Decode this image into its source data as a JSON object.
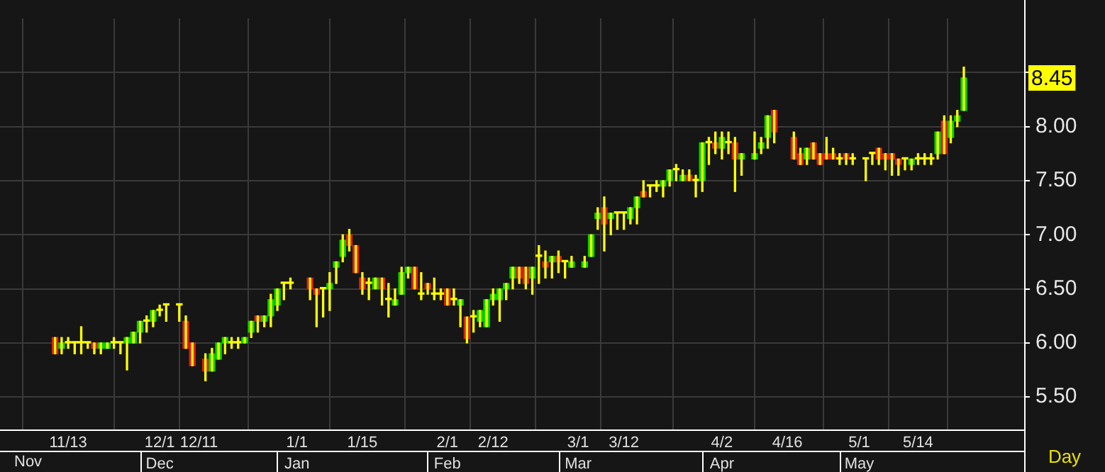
{
  "chart_data": {
    "type": "candlestick",
    "xlabel": "Day",
    "categories": [
      null,
      null,
      "11/13",
      null,
      null,
      null,
      null,
      null,
      null,
      null,
      null,
      null,
      null,
      null,
      null,
      null,
      "12/1\nDec",
      null,
      null,
      null,
      null,
      null,
      "12/11",
      null,
      null,
      null,
      null,
      null,
      null,
      null,
      null,
      null,
      null,
      null,
      null,
      null,
      null,
      "1/1\nJan",
      null,
      null,
      null,
      null,
      null,
      null,
      null,
      null,
      null,
      "1/15",
      null,
      null,
      null,
      null,
      null,
      null,
      null,
      null,
      null,
      null,
      null,
      null,
      "2/1\nFeb",
      null,
      null,
      null,
      null,
      null,
      null,
      "2/12",
      null,
      null,
      null,
      null,
      null,
      null,
      null,
      null,
      null,
      null,
      null,
      null,
      "3/1\nMar",
      null,
      null,
      null,
      null,
      null,
      null,
      "3/12",
      null,
      null,
      null,
      null,
      null,
      null,
      null,
      null,
      null,
      null,
      null,
      null,
      null,
      null,
      "4/2\nApr",
      null,
      null,
      null,
      null,
      null,
      null,
      null,
      null,
      null,
      "4/16",
      null,
      null,
      null,
      null,
      null,
      null,
      null,
      null,
      null,
      null,
      "5/1\nMay",
      null,
      null,
      null,
      null,
      null,
      null,
      null,
      null,
      "5/14",
      null,
      null,
      null,
      null,
      null,
      null,
      null
    ],
    "ohlc": [
      [
        6.05,
        6.05,
        5.9,
        5.9
      ],
      [
        5.95,
        6.05,
        5.9,
        6.0
      ],
      [
        6.0,
        6.05,
        5.95,
        6.0
      ],
      [
        6.0,
        6.0,
        5.9,
        6.0
      ],
      [
        6.0,
        6.15,
        5.9,
        6.0
      ],
      [
        6.0,
        6.0,
        5.95,
        6.0
      ],
      [
        6.0,
        6.0,
        5.9,
        5.95
      ],
      [
        5.95,
        6.0,
        5.9,
        6.0
      ],
      [
        5.95,
        6.0,
        5.95,
        6.0
      ],
      [
        6.0,
        6.05,
        5.95,
        6.0
      ],
      [
        6.0,
        6.0,
        5.9,
        6.0
      ],
      [
        6.0,
        6.05,
        5.75,
        6.05
      ],
      [
        6.0,
        6.1,
        6.0,
        6.1
      ],
      [
        6.1,
        6.2,
        6.0,
        6.2
      ],
      [
        6.2,
        6.25,
        6.1,
        6.2
      ],
      [
        6.2,
        6.3,
        6.15,
        6.3
      ],
      [
        6.3,
        6.35,
        6.25,
        6.3
      ],
      [
        6.35,
        6.35,
        6.2,
        6.35
      ],
      null,
      [
        6.35,
        6.35,
        6.2,
        6.35
      ],
      [
        6.2,
        6.25,
        5.95,
        5.95
      ],
      [
        6.0,
        6.0,
        5.79,
        5.79
      ],
      null,
      [
        5.85,
        5.9,
        5.65,
        5.74
      ],
      [
        5.74,
        5.95,
        5.74,
        5.9
      ],
      [
        5.85,
        6.0,
        5.85,
        6.0
      ],
      [
        6.0,
        6.05,
        5.9,
        6.05
      ],
      [
        6.0,
        6.05,
        5.95,
        6.0
      ],
      [
        6.0,
        6.05,
        5.95,
        6.0
      ],
      [
        6.0,
        6.05,
        6.0,
        6.05
      ],
      [
        6.1,
        6.2,
        6.05,
        6.2
      ],
      [
        6.25,
        6.25,
        6.1,
        6.2
      ],
      [
        6.2,
        6.25,
        6.15,
        6.25
      ],
      [
        6.25,
        6.45,
        6.15,
        6.4
      ],
      [
        6.35,
        6.5,
        6.3,
        6.5
      ],
      [
        6.55,
        6.55,
        6.4,
        6.55
      ],
      [
        6.55,
        6.6,
        6.5,
        6.55
      ],
      null,
      null,
      [
        6.6,
        6.6,
        6.4,
        6.5
      ],
      [
        6.5,
        6.5,
        6.15,
        6.45
      ],
      [
        6.5,
        6.5,
        6.24,
        6.5
      ],
      [
        6.5,
        6.65,
        6.3,
        6.55
      ],
      [
        6.7,
        6.75,
        6.55,
        6.75
      ],
      [
        6.8,
        7.0,
        6.75,
        6.95
      ],
      [
        7.0,
        7.05,
        6.85,
        6.9
      ],
      [
        6.9,
        6.9,
        6.65,
        6.65
      ],
      [
        6.6,
        6.65,
        6.45,
        6.5
      ],
      [
        6.55,
        6.6,
        6.4,
        6.55
      ],
      [
        6.5,
        6.6,
        6.5,
        6.6
      ],
      [
        6.6,
        6.6,
        6.35,
        6.5
      ],
      [
        6.4,
        6.55,
        6.24,
        6.4
      ],
      [
        6.35,
        6.5,
        6.35,
        6.4
      ],
      [
        6.45,
        6.7,
        6.45,
        6.65
      ],
      [
        6.65,
        6.7,
        6.6,
        6.7
      ],
      [
        6.7,
        6.7,
        6.5,
        6.5
      ],
      [
        6.45,
        6.65,
        6.4,
        6.45
      ],
      [
        6.55,
        6.55,
        6.45,
        6.5
      ],
      [
        6.45,
        6.6,
        6.4,
        6.45
      ],
      [
        6.45,
        6.5,
        6.4,
        6.45
      ],
      [
        6.5,
        6.5,
        6.35,
        6.35
      ],
      [
        6.4,
        6.5,
        6.35,
        6.4
      ],
      [
        6.35,
        6.4,
        6.15,
        6.4
      ],
      [
        6.24,
        6.24,
        6.0,
        6.04
      ],
      [
        6.24,
        6.3,
        6.1,
        6.24
      ],
      [
        6.2,
        6.3,
        6.15,
        6.3
      ],
      [
        6.15,
        6.4,
        6.15,
        6.4
      ],
      [
        6.4,
        6.5,
        6.35,
        6.45
      ],
      [
        6.4,
        6.5,
        6.2,
        6.5
      ],
      [
        6.5,
        6.55,
        6.4,
        6.55
      ],
      [
        6.6,
        6.7,
        6.5,
        6.7
      ],
      [
        6.7,
        6.7,
        6.55,
        6.6
      ],
      [
        6.7,
        6.7,
        6.5,
        6.55
      ],
      [
        6.6,
        6.7,
        6.45,
        6.7
      ],
      [
        6.8,
        6.9,
        6.55,
        6.8
      ],
      [
        6.75,
        6.85,
        6.6,
        6.7
      ],
      [
        6.75,
        6.8,
        6.6,
        6.8
      ],
      [
        6.8,
        6.85,
        6.65,
        6.75
      ],
      [
        6.75,
        6.75,
        6.6,
        6.75
      ],
      [
        6.7,
        6.8,
        6.7,
        6.75
      ],
      null,
      [
        6.7,
        6.8,
        6.7,
        6.75
      ],
      [
        6.8,
        7.0,
        6.8,
        7.0
      ],
      [
        7.15,
        7.25,
        7.05,
        7.2
      ],
      [
        7.25,
        7.35,
        6.85,
        7.1
      ],
      [
        7.15,
        7.2,
        7.0,
        7.2
      ],
      [
        7.2,
        7.2,
        7.05,
        7.2
      ],
      [
        7.2,
        7.2,
        7.05,
        7.2
      ],
      [
        7.15,
        7.25,
        7.1,
        7.25
      ],
      [
        7.25,
        7.35,
        7.1,
        7.35
      ],
      [
        7.4,
        7.5,
        7.35,
        7.35
      ],
      [
        7.45,
        7.45,
        7.35,
        7.45
      ],
      [
        7.45,
        7.5,
        7.4,
        7.45
      ],
      [
        7.45,
        7.5,
        7.35,
        7.5
      ],
      [
        7.5,
        7.6,
        7.45,
        7.6
      ],
      [
        7.6,
        7.65,
        7.5,
        7.6
      ],
      [
        7.5,
        7.6,
        7.5,
        7.55
      ],
      [
        7.55,
        7.6,
        7.5,
        7.5
      ],
      [
        7.5,
        7.55,
        7.35,
        7.5
      ],
      [
        7.5,
        7.85,
        7.4,
        7.85
      ],
      [
        7.85,
        7.9,
        7.65,
        7.85
      ],
      [
        7.85,
        7.95,
        7.75,
        7.8
      ],
      [
        7.8,
        7.95,
        7.7,
        7.9
      ],
      [
        7.85,
        7.95,
        7.75,
        7.85
      ],
      [
        7.85,
        7.9,
        7.4,
        7.7
      ],
      [
        7.7,
        7.75,
        7.55,
        7.75
      ],
      null,
      [
        7.7,
        7.95,
        7.7,
        7.75
      ],
      [
        7.8,
        7.9,
        7.75,
        7.85
      ],
      [
        7.9,
        8.1,
        7.8,
        8.1
      ],
      [
        8.15,
        8.15,
        7.85,
        7.95
      ],
      null,
      null,
      [
        7.9,
        7.95,
        7.7,
        7.7
      ],
      [
        7.75,
        7.8,
        7.65,
        7.65
      ],
      [
        7.7,
        7.8,
        7.65,
        7.8
      ],
      [
        7.85,
        7.85,
        7.7,
        7.7
      ],
      [
        7.75,
        7.75,
        7.65,
        7.65
      ],
      [
        7.75,
        7.9,
        7.7,
        7.7
      ],
      [
        7.75,
        7.8,
        7.7,
        7.7
      ],
      [
        7.7,
        7.75,
        7.65,
        7.7
      ],
      [
        7.75,
        7.75,
        7.65,
        7.7
      ],
      [
        7.7,
        7.75,
        7.65,
        7.7
      ],
      null,
      [
        7.7,
        7.7,
        7.5,
        7.7
      ],
      [
        7.75,
        7.75,
        7.65,
        7.75
      ],
      [
        7.8,
        7.8,
        7.65,
        7.7
      ],
      [
        7.75,
        7.75,
        7.6,
        7.7
      ],
      [
        7.75,
        7.75,
        7.55,
        7.7
      ],
      [
        7.7,
        7.7,
        7.55,
        7.65
      ],
      [
        7.7,
        7.7,
        7.6,
        7.7
      ],
      [
        7.65,
        7.7,
        7.6,
        7.7
      ],
      [
        7.7,
        7.75,
        7.65,
        7.7
      ],
      [
        7.7,
        7.75,
        7.65,
        7.7
      ],
      [
        7.7,
        7.75,
        7.65,
        7.7
      ],
      [
        7.75,
        7.95,
        7.7,
        7.95
      ],
      [
        8.05,
        8.1,
        7.75,
        7.75
      ],
      [
        7.9,
        8.1,
        7.85,
        8.05
      ],
      [
        8.05,
        8.15,
        8.0,
        8.1
      ],
      [
        8.15,
        8.55,
        8.15,
        8.45
      ]
    ],
    "ylim": [
      5.2,
      9.0
    ],
    "yticks": [
      {
        "value": 5.5,
        "label": "5.50"
      },
      {
        "value": 6,
        "label": "6.00"
      },
      {
        "value": 6.5,
        "label": "6.50"
      },
      {
        "value": 7,
        "label": "7.00"
      },
      {
        "value": 7.5,
        "label": "7.50"
      },
      {
        "value": 8,
        "label": "8.00"
      },
      {
        "value": 8.5,
        "label": null
      }
    ],
    "grid": true,
    "annotations": [
      "Nov",
      "8.45"
    ]
  }
}
